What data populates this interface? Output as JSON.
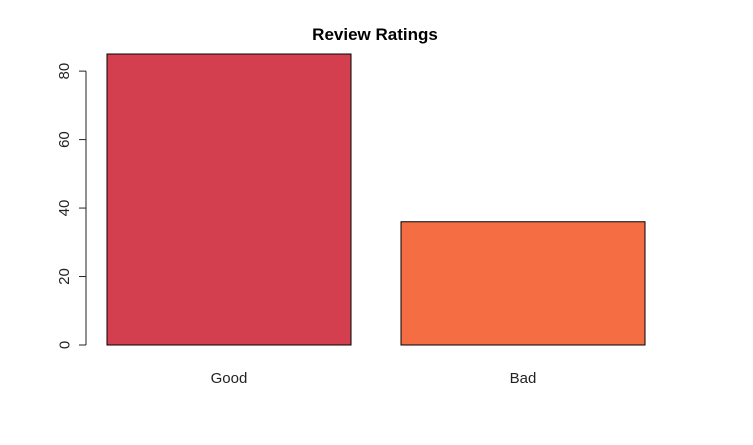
{
  "chart_data": {
    "type": "bar",
    "title": "Review Ratings",
    "categories": [
      "Good",
      "Bad"
    ],
    "values": [
      85,
      36
    ],
    "colors": [
      "#d43f4f",
      "#f46d43"
    ],
    "xlabel": "",
    "ylabel": "",
    "ylim": [
      0,
      85
    ],
    "yticks": [
      0,
      20,
      40,
      60,
      80
    ],
    "grid": false,
    "legend": false
  }
}
